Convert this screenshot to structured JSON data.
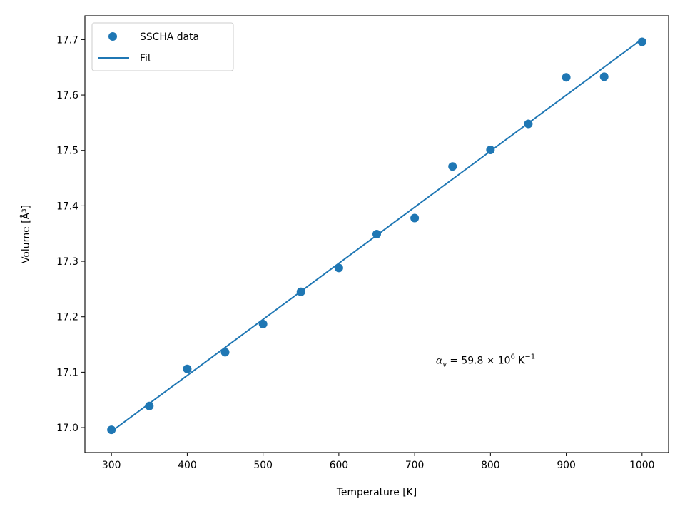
{
  "chart_data": {
    "type": "scatter",
    "xlabel": "Temperature [K]",
    "ylabel": "Volume [Å³]",
    "xlim": [
      265,
      1035
    ],
    "ylim": [
      16.955,
      17.743
    ],
    "xticks": [
      300,
      400,
      500,
      600,
      700,
      800,
      900,
      1000
    ],
    "yticks": [
      17.0,
      17.1,
      17.2,
      17.3,
      17.4,
      17.5,
      17.6,
      17.7
    ],
    "legend_position": "upper-left",
    "grid": false,
    "color": "#1f77b4",
    "series": [
      {
        "name": "SSCHA data",
        "kind": "scatter",
        "x": [
          300,
          350,
          400,
          450,
          500,
          550,
          600,
          650,
          700,
          750,
          800,
          850,
          900,
          950,
          1000
        ],
        "y": [
          16.996,
          17.039,
          17.106,
          17.136,
          17.187,
          17.245,
          17.288,
          17.349,
          17.378,
          17.471,
          17.501,
          17.548,
          17.632,
          17.633,
          17.696
        ]
      },
      {
        "name": "Fit",
        "kind": "line",
        "x": [
          300,
          1000
        ],
        "y": [
          16.993,
          17.701
        ]
      }
    ],
    "annotation": {
      "x": 728,
      "y": 17.115,
      "symbol": "α",
      "subscript": "v",
      "equals": " = 59.8 × 10",
      "exponent": "6",
      "unit_prefix": " K",
      "unit_exponent": "−1"
    }
  }
}
